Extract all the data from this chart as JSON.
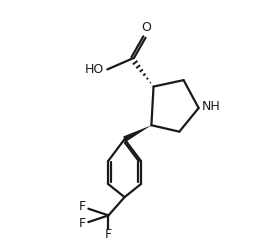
{
  "bg_color": "#ffffff",
  "lc": "#1a1a1a",
  "lw": 1.6,
  "fs": 9.0,
  "xlim": [
    -1.0,
    8.5
  ],
  "ylim": [
    -0.8,
    10.5
  ]
}
